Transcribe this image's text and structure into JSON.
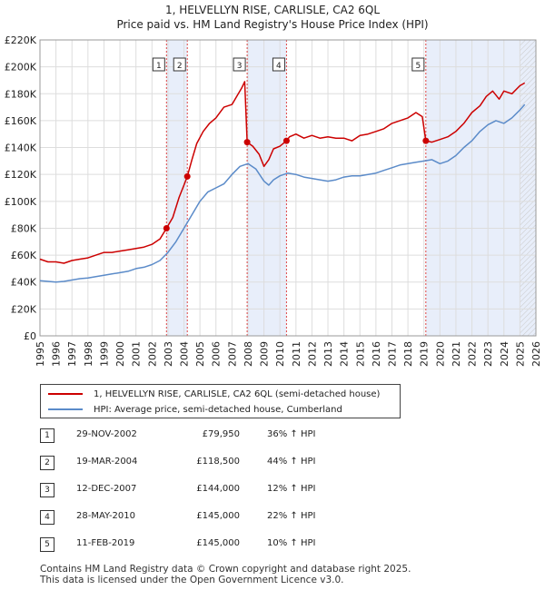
{
  "chart_data": {
    "type": "line",
    "title": "1, HELVELLYN RISE, CARLISLE, CA2 6QL",
    "subtitle": "Price paid vs. HM Land Registry's House Price Index (HPI)",
    "xlabel": "",
    "ylabel": "",
    "xlim": [
      1995,
      2026
    ],
    "ylim": [
      0,
      220000
    ],
    "x_ticks": [
      "1995",
      "1996",
      "1997",
      "1998",
      "1999",
      "2000",
      "2001",
      "2002",
      "2003",
      "2004",
      "2005",
      "2006",
      "2007",
      "2008",
      "2009",
      "2010",
      "2011",
      "2012",
      "2013",
      "2014",
      "2015",
      "2016",
      "2017",
      "2018",
      "2019",
      "2020",
      "2021",
      "2022",
      "2023",
      "2024",
      "2025",
      "2026"
    ],
    "y_ticks": [
      "£0",
      "£20K",
      "£40K",
      "£60K",
      "£80K",
      "£100K",
      "£120K",
      "£140K",
      "£160K",
      "£180K",
      "£200K",
      "£220K"
    ],
    "grid": true,
    "series": [
      {
        "name": "1, HELVELLYN RISE, CARLISLE, CA2 6QL (semi-detached house)",
        "color": "#cc0000",
        "x": [
          1995.0,
          1995.5,
          1996.0,
          1996.5,
          1997.0,
          1997.5,
          1998.0,
          1998.5,
          1999.0,
          1999.5,
          2000.0,
          2000.5,
          2001.0,
          2001.5,
          2002.0,
          2002.5,
          2002.91,
          2003.3,
          2003.7,
          2004.0,
          2004.21,
          2004.5,
          2004.8,
          2005.2,
          2005.6,
          2006.0,
          2006.5,
          2007.0,
          2007.3,
          2007.6,
          2007.8,
          2007.95,
          2008.3,
          2008.7,
          2009.0,
          2009.3,
          2009.6,
          2010.0,
          2010.41,
          2010.6,
          2011.0,
          2011.5,
          2012.0,
          2012.5,
          2013.0,
          2013.5,
          2014.0,
          2014.5,
          2015.0,
          2015.5,
          2016.0,
          2016.5,
          2017.0,
          2017.5,
          2018.0,
          2018.5,
          2018.9,
          2019.12,
          2019.5,
          2020.0,
          2020.5,
          2021.0,
          2021.5,
          2022.0,
          2022.5,
          2022.9,
          2023.3,
          2023.7,
          2024.0,
          2024.5,
          2025.0,
          2025.3
        ],
        "y": [
          57000,
          55000,
          55000,
          54000,
          56000,
          57000,
          58000,
          60000,
          62000,
          62000,
          63000,
          64000,
          65000,
          66000,
          68000,
          72000,
          79950,
          88000,
          103000,
          112000,
          118500,
          131000,
          143000,
          152000,
          158000,
          162000,
          170000,
          172000,
          178000,
          184000,
          189000,
          144000,
          141000,
          135000,
          126000,
          131000,
          139000,
          141000,
          145000,
          148000,
          150000,
          147000,
          149000,
          147000,
          148000,
          147000,
          147000,
          145000,
          149000,
          150000,
          152000,
          154000,
          158000,
          160000,
          162000,
          166000,
          163000,
          145000,
          144000,
          146000,
          148000,
          152000,
          158000,
          166000,
          171000,
          178000,
          182000,
          176000,
          182000,
          180000,
          186000,
          188000
        ]
      },
      {
        "name": "HPI: Average price, semi-detached house, Cumberland",
        "color": "#5b8bc9",
        "x": [
          1995.0,
          1995.5,
          1996.0,
          1996.5,
          1997.0,
          1997.5,
          1998.0,
          1998.5,
          1999.0,
          1999.5,
          2000.0,
          2000.5,
          2001.0,
          2001.5,
          2002.0,
          2002.5,
          2003.0,
          2003.5,
          2004.0,
          2004.5,
          2005.0,
          2005.5,
          2006.0,
          2006.5,
          2007.0,
          2007.5,
          2008.0,
          2008.5,
          2009.0,
          2009.3,
          2009.6,
          2010.0,
          2010.5,
          2011.0,
          2011.5,
          2012.0,
          2012.5,
          2013.0,
          2013.5,
          2014.0,
          2014.5,
          2015.0,
          2015.5,
          2016.0,
          2016.5,
          2017.0,
          2017.5,
          2018.0,
          2018.5,
          2019.0,
          2019.5,
          2020.0,
          2020.5,
          2021.0,
          2021.5,
          2022.0,
          2022.5,
          2023.0,
          2023.5,
          2024.0,
          2024.5,
          2025.0,
          2025.3
        ],
        "y": [
          41000,
          40500,
          40000,
          40500,
          41500,
          42500,
          43000,
          44000,
          45000,
          46000,
          47000,
          48000,
          50000,
          51000,
          53000,
          56000,
          62000,
          70000,
          80000,
          90000,
          100000,
          107000,
          110000,
          113000,
          120000,
          126000,
          128000,
          124000,
          115000,
          112000,
          116000,
          119000,
          121000,
          120000,
          118000,
          117000,
          116000,
          115000,
          116000,
          118000,
          119000,
          119000,
          120000,
          121000,
          123000,
          125000,
          127000,
          128000,
          129000,
          130000,
          131000,
          128000,
          130000,
          134000,
          140000,
          145000,
          152000,
          157000,
          160000,
          158000,
          162000,
          168000,
          172000
        ]
      }
    ],
    "annotations": [
      {
        "label": "1",
        "x": 2002.91,
        "y": 79950
      },
      {
        "label": "2",
        "x": 2004.21,
        "y": 118500
      },
      {
        "label": "3",
        "x": 2007.95,
        "y": 144000
      },
      {
        "label": "4",
        "x": 2010.41,
        "y": 145000
      },
      {
        "label": "5",
        "x": 2019.12,
        "y": 145000
      }
    ],
    "shaded_ranges": [
      [
        2002.91,
        2004.21
      ],
      [
        2007.95,
        2010.41
      ],
      [
        2019.12,
        2026.0
      ]
    ]
  },
  "legend": {
    "property_label": "1, HELVELLYN RISE, CARLISLE, CA2 6QL (semi-detached house)",
    "hpi_label": "HPI: Average price, semi-detached house, Cumberland"
  },
  "sales": [
    {
      "num": "1",
      "date": "29-NOV-2002",
      "price": "£79,950",
      "hpi": "36% ↑ HPI"
    },
    {
      "num": "2",
      "date": "19-MAR-2004",
      "price": "£118,500",
      "hpi": "44% ↑ HPI"
    },
    {
      "num": "3",
      "date": "12-DEC-2007",
      "price": "£144,000",
      "hpi": "12% ↑ HPI"
    },
    {
      "num": "4",
      "date": "28-MAY-2010",
      "price": "£145,000",
      "hpi": "22% ↑ HPI"
    },
    {
      "num": "5",
      "date": "11-FEB-2019",
      "price": "£145,000",
      "hpi": "10% ↑ HPI"
    }
  ],
  "footer": {
    "line1": "Contains HM Land Registry data © Crown copyright and database right 2025.",
    "line2": "This data is licensed under the Open Government Licence v3.0."
  },
  "colors": {
    "property": "#cc0000",
    "hpi": "#5b8bc9",
    "shade": "#e8eefa",
    "grid": "#dddddd"
  }
}
